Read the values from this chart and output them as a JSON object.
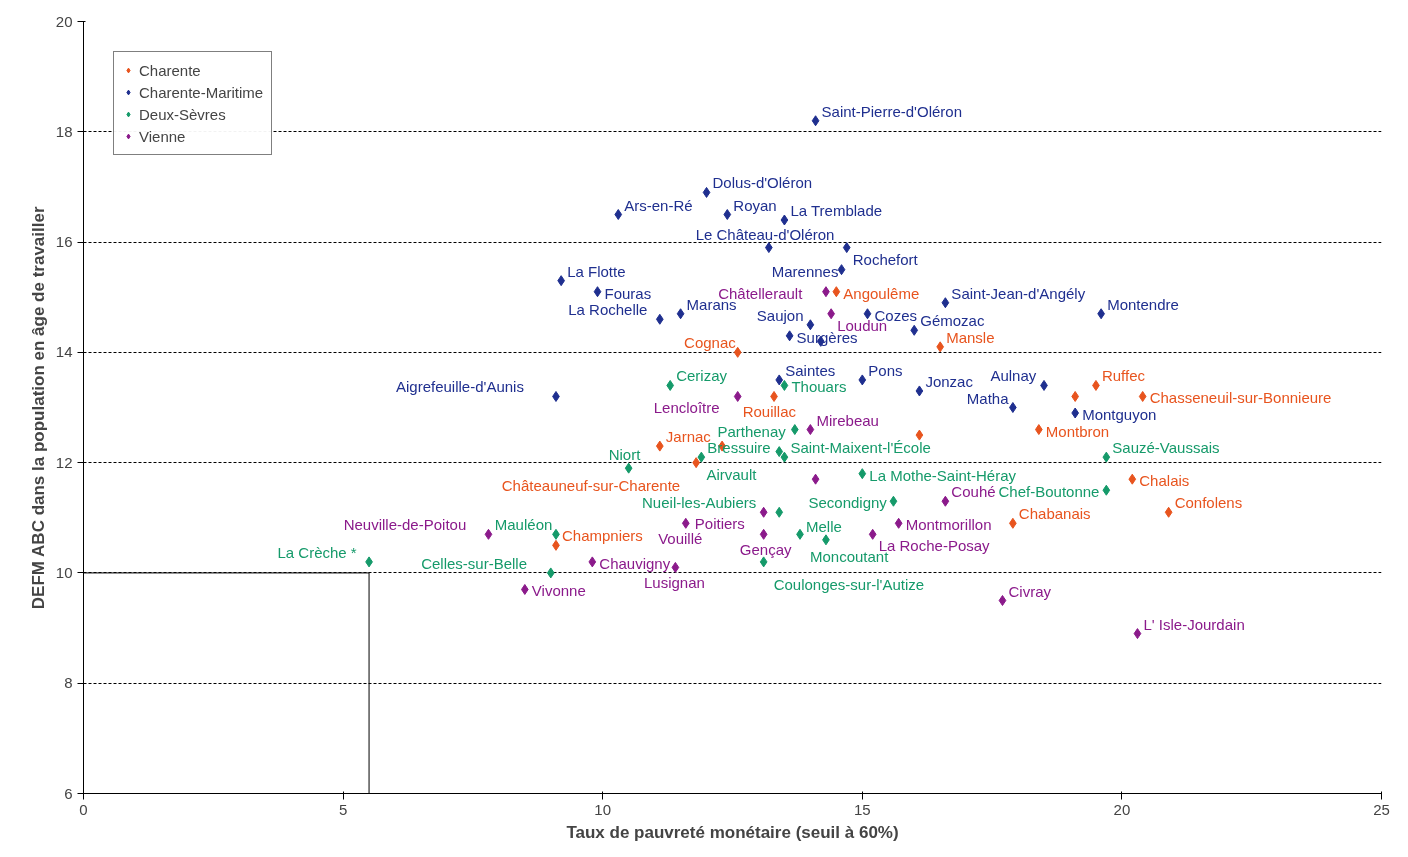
{
  "chart_data": {
    "type": "scatter",
    "xlabel": "Taux de pauvreté monétaire (seuil à 60%)",
    "ylabel": "DEFM ABC dans la population en âge de travailler",
    "xlim": [
      0,
      25
    ],
    "xticks": [
      0,
      5,
      10,
      15,
      20,
      25
    ],
    "ylim": [
      6,
      20
    ],
    "yticks": [
      6,
      8,
      10,
      12,
      14,
      16,
      18,
      20
    ],
    "grid": "y",
    "legend": "top left",
    "series": [
      {
        "name": "Charente",
        "color": "#e8541e",
        "marker": "diamond",
        "x": [
          14.5,
          12.6,
          16.5,
          19.5,
          19.1,
          20.4,
          13.3,
          18.4,
          16.1,
          11.1,
          12.3,
          11.8,
          9.1,
          20.2,
          20.9,
          17.9
        ],
        "values": [
          15.1,
          14.0,
          14.1,
          13.4,
          13.2,
          13.2,
          13.2,
          12.6,
          12.5,
          12.3,
          12.3,
          12.0,
          10.5,
          11.7,
          11.1,
          10.9
        ]
      },
      {
        "name": "Charente-Maritime",
        "color": "#1f2f8f",
        "marker": "diamond",
        "x": [
          14.1,
          12.0,
          10.3,
          12.4,
          13.5,
          13.2,
          14.7,
          14.6,
          9.2,
          9.9,
          16.6,
          19.6,
          11.5,
          11.1,
          15.1,
          14.0,
          16.0,
          13.6,
          14.2,
          13.4,
          15.0,
          16.1,
          18.5,
          17.9,
          19.1,
          9.1
        ],
        "values": [
          18.2,
          16.9,
          16.5,
          16.5,
          16.4,
          15.9,
          15.9,
          15.5,
          15.3,
          15.1,
          14.9,
          14.7,
          14.7,
          14.6,
          14.7,
          14.5,
          14.4,
          14.3,
          14.2,
          13.5,
          13.5,
          13.3,
          13.4,
          13.0,
          12.9,
          13.2
        ]
      },
      {
        "name": "Deux-Sèvres",
        "color": "#159a6a",
        "marker": "diamond",
        "x": [
          11.3,
          13.5,
          13.7,
          13.4,
          13.5,
          10.5,
          11.9,
          15.0,
          15.6,
          13.4,
          13.8,
          14.3,
          13.1,
          9.1,
          9.0,
          5.5,
          19.7,
          19.7
        ],
        "values": [
          13.4,
          13.4,
          12.6,
          12.2,
          12.1,
          11.9,
          12.1,
          11.8,
          11.3,
          11.1,
          10.7,
          10.6,
          10.2,
          10.7,
          10.0,
          10.2,
          12.1,
          11.5
        ]
      },
      {
        "name": "Vienne",
        "color": "#8b1a8b",
        "marker": "diamond",
        "x": [
          14.3,
          14.4,
          12.6,
          14.0,
          14.1,
          13.1,
          11.6,
          13.1,
          15.7,
          15.2,
          16.6,
          9.8,
          11.4,
          8.5,
          7.8,
          17.7,
          20.3
        ],
        "values": [
          15.1,
          14.7,
          13.2,
          12.6,
          11.7,
          11.1,
          10.9,
          10.7,
          10.9,
          10.7,
          11.3,
          10.2,
          10.1,
          9.7,
          10.7,
          9.5,
          8.9
        ]
      },
      {
        "type": "line",
        "color": "#000000",
        "line_style": "solid",
        "x": [
          0,
          5.5,
          5.5
        ],
        "values": [
          10,
          10,
          6
        ]
      }
    ],
    "annotations": [
      {
        "text": "Angoulême",
        "x": 14.5,
        "y": 15.1
      },
      {
        "text": "Cognac",
        "x": 12.6,
        "y": 14.0
      },
      {
        "text": "Mansle",
        "x": 16.5,
        "y": 14.1
      },
      {
        "text": "Ruffec",
        "x": 19.5,
        "y": 13.4
      },
      {
        "text": "Chasseneuil-sur-Bonnieure",
        "x": 20.4,
        "y": 13.2
      },
      {
        "text": "Rouillac",
        "x": 13.3,
        "y": 13.2
      },
      {
        "text": "Montbron",
        "x": 18.4,
        "y": 12.6
      },
      {
        "text": "Jarnac",
        "x": 11.1,
        "y": 12.3
      },
      {
        "text": "Châteauneuf-sur-Charente",
        "x": 11.8,
        "y": 12.0
      },
      {
        "text": "Champniers",
        "x": 9.1,
        "y": 10.5
      },
      {
        "text": "Chalais",
        "x": 20.2,
        "y": 11.7
      },
      {
        "text": "Confolens",
        "x": 20.9,
        "y": 11.1
      },
      {
        "text": "Chabanais",
        "x": 17.9,
        "y": 10.9
      },
      {
        "text": "Saint-Pierre-d'Oléron",
        "x": 14.1,
        "y": 18.2
      },
      {
        "text": "Dolus-d'Oléron",
        "x": 12.0,
        "y": 16.9
      },
      {
        "text": "Ars-en-Ré",
        "x": 10.3,
        "y": 16.5
      },
      {
        "text": "Royan",
        "x": 12.4,
        "y": 16.5
      },
      {
        "text": "La Tremblade",
        "x": 13.5,
        "y": 16.4
      },
      {
        "text": "Le Château-d'Oléron",
        "x": 13.2,
        "y": 15.9
      },
      {
        "text": "Rochefort",
        "x": 14.7,
        "y": 15.9
      },
      {
        "text": "Marennes",
        "x": 14.6,
        "y": 15.5
      },
      {
        "text": "La Flotte",
        "x": 9.2,
        "y": 15.3
      },
      {
        "text": "Fouras",
        "x": 9.9,
        "y": 15.1
      },
      {
        "text": "Saint-Jean-d'Angély",
        "x": 16.6,
        "y": 14.9
      },
      {
        "text": "Montendre",
        "x": 19.6,
        "y": 14.7
      },
      {
        "text": "Marans",
        "x": 11.5,
        "y": 14.7
      },
      {
        "text": "La Rochelle",
        "x": 11.1,
        "y": 14.6
      },
      {
        "text": "Cozes",
        "x": 15.1,
        "y": 14.7
      },
      {
        "text": "Saujon",
        "x": 14.0,
        "y": 14.5
      },
      {
        "text": "Gémozac",
        "x": 16.0,
        "y": 14.4
      },
      {
        "text": "Surgères",
        "x": 13.6,
        "y": 14.3
      },
      {
        "text": "Saintes",
        "x": 13.4,
        "y": 13.5
      },
      {
        "text": "Pons",
        "x": 15.0,
        "y": 13.5
      },
      {
        "text": "Jonzac",
        "x": 16.1,
        "y": 13.3
      },
      {
        "text": "Aulnay",
        "x": 18.5,
        "y": 13.4
      },
      {
        "text": "Matha",
        "x": 17.9,
        "y": 13.0
      },
      {
        "text": "Montguyon",
        "x": 19.1,
        "y": 12.9
      },
      {
        "text": "Aigrefeuille-d'Aunis",
        "x": 9.1,
        "y": 13.2
      },
      {
        "text": "Cerizay",
        "x": 11.3,
        "y": 13.4
      },
      {
        "text": "Thouars",
        "x": 13.5,
        "y": 13.4
      },
      {
        "text": "Parthenay",
        "x": 13.7,
        "y": 12.6
      },
      {
        "text": "Airvault",
        "x": 13.4,
        "y": 12.2
      },
      {
        "text": "Saint-Maixent-l'École",
        "x": 13.5,
        "y": 12.1
      },
      {
        "text": "Niort",
        "x": 10.5,
        "y": 11.9
      },
      {
        "text": "Bressuire",
        "x": 11.9,
        "y": 12.1
      },
      {
        "text": "La Mothe-Saint-Héray",
        "x": 15.0,
        "y": 11.8
      },
      {
        "text": "Secondigny",
        "x": 15.6,
        "y": 11.3
      },
      {
        "text": "Nueil-les-Aubiers",
        "x": 13.4,
        "y": 11.1
      },
      {
        "text": "Moncoutant",
        "x": 13.8,
        "y": 10.7
      },
      {
        "text": "Melle",
        "x": 14.3,
        "y": 10.6
      },
      {
        "text": "Coulonges-sur-l'Autize",
        "x": 13.1,
        "y": 10.2
      },
      {
        "text": "Mauléon",
        "x": 9.1,
        "y": 10.7
      },
      {
        "text": "Celles-sur-Belle",
        "x": 9.0,
        "y": 10.0
      },
      {
        "text": "La Crèche *",
        "x": 5.5,
        "y": 10.2
      },
      {
        "text": "Sauzé-Vaussais",
        "x": 19.7,
        "y": 12.1
      },
      {
        "text": "Chef-Boutonne",
        "x": 19.7,
        "y": 11.5
      },
      {
        "text": "Châtellerault",
        "x": 14.3,
        "y": 15.1
      },
      {
        "text": "Loudun",
        "x": 14.4,
        "y": 14.7
      },
      {
        "text": "Lencloître",
        "x": 12.6,
        "y": 13.2
      },
      {
        "text": "Mirebeau",
        "x": 14.0,
        "y": 12.6
      },
      {
        "text": "Poitiers",
        "x": 13.1,
        "y": 11.1
      },
      {
        "text": "Vouillé",
        "x": 11.6,
        "y": 10.9
      },
      {
        "text": "Gençay",
        "x": 13.1,
        "y": 10.7
      },
      {
        "text": "Montmorillon",
        "x": 15.7,
        "y": 10.9
      },
      {
        "text": "La Roche-Posay",
        "x": 15.2,
        "y": 10.7
      },
      {
        "text": "Couhé",
        "x": 16.6,
        "y": 11.3
      },
      {
        "text": "Chauvigny",
        "x": 9.8,
        "y": 10.2
      },
      {
        "text": "Lusignan",
        "x": 11.4,
        "y": 10.1
      },
      {
        "text": "Vivonne",
        "x": 8.5,
        "y": 9.7
      },
      {
        "text": "Neuville-de-Poitou",
        "x": 7.8,
        "y": 10.7
      },
      {
        "text": "Civray",
        "x": 17.7,
        "y": 9.5
      },
      {
        "text": "L' Isle-Jourdain",
        "x": 20.3,
        "y": 8.9
      }
    ]
  }
}
